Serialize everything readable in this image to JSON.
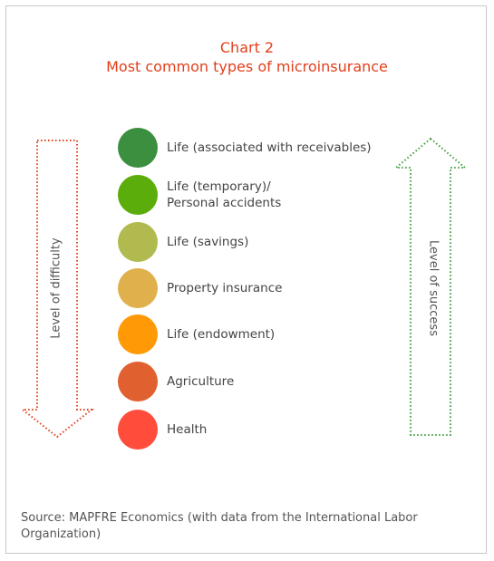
{
  "chart": {
    "title_line1": "Chart 2",
    "title_line2": "Most common types of microinsurance"
  },
  "axes": {
    "left_label": "Level of difficulty",
    "right_label": "Level of success"
  },
  "items": [
    {
      "label_line1": "Life (associated with receivables)",
      "label_line2": "",
      "color": "#3b8f3e"
    },
    {
      "label_line1": "Life (temporary)/",
      "label_line2": "Personal accidents",
      "color": "#5aad0a"
    },
    {
      "label_line1": "Life (savings)",
      "label_line2": "",
      "color": "#b0ba4e"
    },
    {
      "label_line1": "Property insurance",
      "label_line2": "",
      "color": "#e0b04c"
    },
    {
      "label_line1": "Life (endowment)",
      "label_line2": "",
      "color": "#ff9905"
    },
    {
      "label_line1": "Agriculture",
      "label_line2": "",
      "color": "#e0612f"
    },
    {
      "label_line1": "Health",
      "label_line2": "",
      "color": "#ff4c3b"
    }
  ],
  "colors": {
    "title": "#e2401c",
    "difficulty_arrow": "#e2401c",
    "success_arrow": "#3f9e3f"
  },
  "source": "Source: MAPFRE Economics (with data from the International Labor Organization)"
}
